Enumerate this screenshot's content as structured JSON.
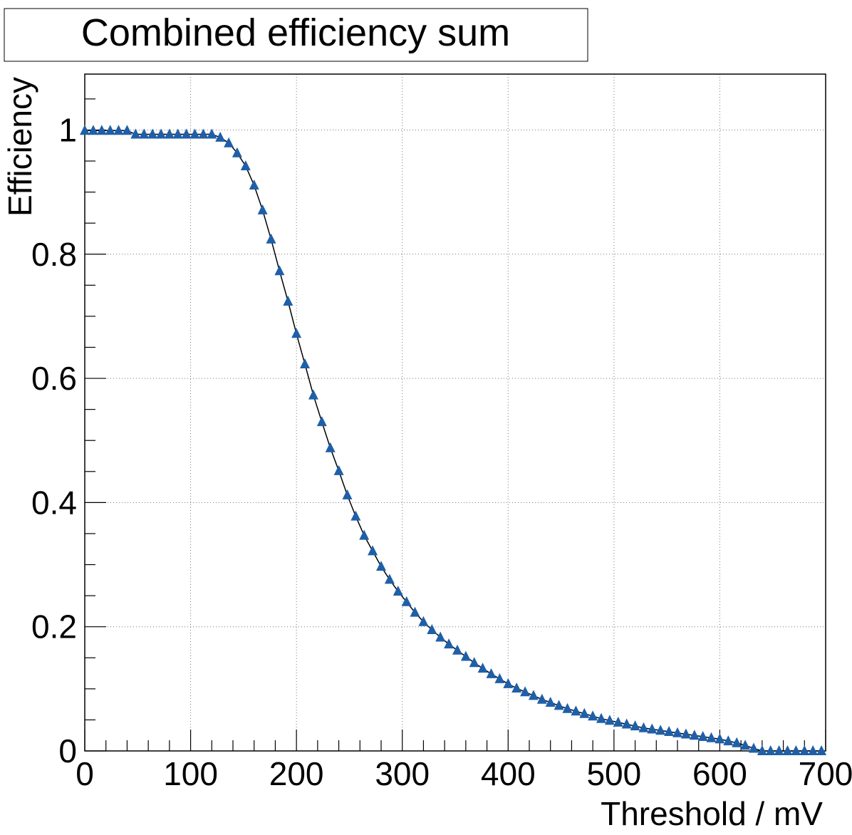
{
  "chart_data": {
    "type": "line",
    "title": "Combined efficiency sum",
    "xlabel": "Threshold / mV",
    "ylabel": "Efficiency",
    "xlim": [
      0,
      700
    ],
    "ylim": [
      0,
      1.09
    ],
    "grid": true,
    "x_ticks": [
      0,
      100,
      200,
      300,
      400,
      500,
      600,
      700
    ],
    "x_tick_labels": [
      "0",
      "100",
      "200",
      "300",
      "400",
      "500",
      "600",
      "700"
    ],
    "y_ticks": [
      0,
      0.2,
      0.4,
      0.6,
      0.8,
      1
    ],
    "y_tick_labels": [
      "0",
      "0.2",
      "0.4",
      "0.6",
      "0.8",
      "1"
    ],
    "marker_color": "#1f5fa8",
    "line_color": "#000000",
    "series": [
      {
        "marker": "triangle",
        "x": [
          0,
          8,
          16,
          24,
          32,
          40,
          48,
          56,
          64,
          72,
          80,
          88,
          96,
          104,
          112,
          120,
          128,
          136,
          144,
          152,
          160,
          168,
          176,
          184,
          192,
          200,
          208,
          216,
          224,
          232,
          240,
          248,
          256,
          264,
          272,
          280,
          288,
          296,
          304,
          312,
          320,
          328,
          336,
          344,
          352,
          360,
          368,
          376,
          384,
          392,
          400,
          408,
          416,
          424,
          432,
          440,
          448,
          456,
          464,
          472,
          480,
          488,
          496,
          504,
          512,
          520,
          528,
          536,
          544,
          552,
          560,
          568,
          576,
          584,
          592,
          600,
          608,
          616,
          624,
          632,
          640,
          648,
          656,
          664,
          672,
          680,
          688,
          696
        ],
        "y": [
          0.999,
          0.999,
          0.999,
          0.999,
          0.999,
          0.999,
          0.993,
          0.993,
          0.993,
          0.993,
          0.993,
          0.993,
          0.993,
          0.993,
          0.993,
          0.993,
          0.988,
          0.979,
          0.963,
          0.942,
          0.911,
          0.871,
          0.824,
          0.773,
          0.724,
          0.672,
          0.623,
          0.573,
          0.53,
          0.488,
          0.451,
          0.412,
          0.378,
          0.347,
          0.322,
          0.297,
          0.276,
          0.257,
          0.24,
          0.223,
          0.208,
          0.195,
          0.183,
          0.172,
          0.162,
          0.152,
          0.142,
          0.133,
          0.124,
          0.116,
          0.108,
          0.101,
          0.095,
          0.089,
          0.083,
          0.078,
          0.073,
          0.068,
          0.064,
          0.06,
          0.056,
          0.052,
          0.049,
          0.046,
          0.043,
          0.04,
          0.037,
          0.035,
          0.033,
          0.031,
          0.029,
          0.027,
          0.025,
          0.023,
          0.021,
          0.019,
          0.016,
          0.013,
          0.009,
          0.004,
          0.0,
          0.0,
          0.0,
          0.0,
          0.0,
          0.0,
          0.0,
          0.0
        ]
      }
    ]
  }
}
